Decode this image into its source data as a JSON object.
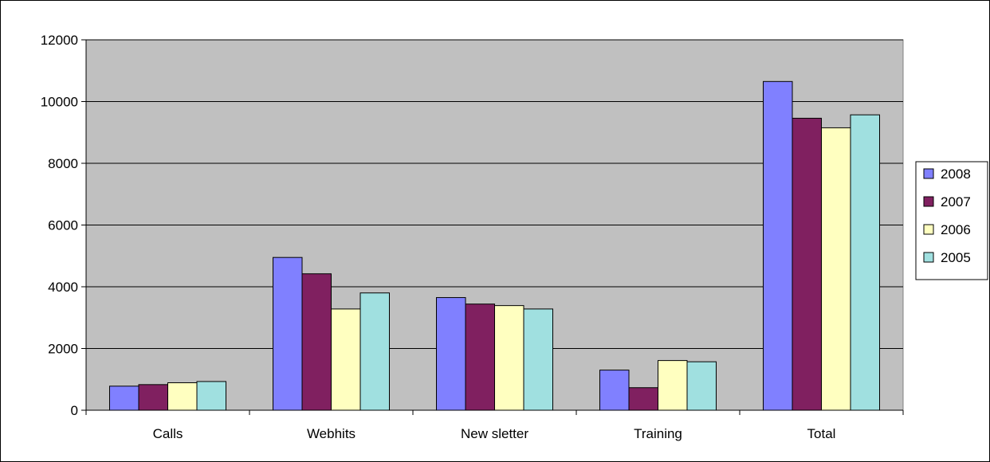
{
  "chart_data": {
    "type": "bar",
    "title": "",
    "xlabel": "",
    "ylabel": "",
    "categories": [
      "Calls",
      "Webhits",
      "New sletter",
      "Training",
      "Total"
    ],
    "series": [
      {
        "name": "2008",
        "color": "#8080ff",
        "values": [
          780,
          4950,
          3650,
          1300,
          10650
        ]
      },
      {
        "name": "2007",
        "color": "#802060",
        "values": [
          830,
          4420,
          3440,
          730,
          9460
        ]
      },
      {
        "name": "2006",
        "color": "#ffffc0",
        "values": [
          890,
          3280,
          3390,
          1610,
          9150
        ]
      },
      {
        "name": "2005",
        "color": "#a0e0e0",
        "values": [
          930,
          3800,
          3280,
          1570,
          9570
        ]
      }
    ],
    "ylim": [
      0,
      12000
    ],
    "yticks": [
      0,
      2000,
      4000,
      6000,
      8000,
      10000,
      12000
    ],
    "grid": true,
    "plot_background": "#c0c0c0",
    "legend_position": "right"
  }
}
